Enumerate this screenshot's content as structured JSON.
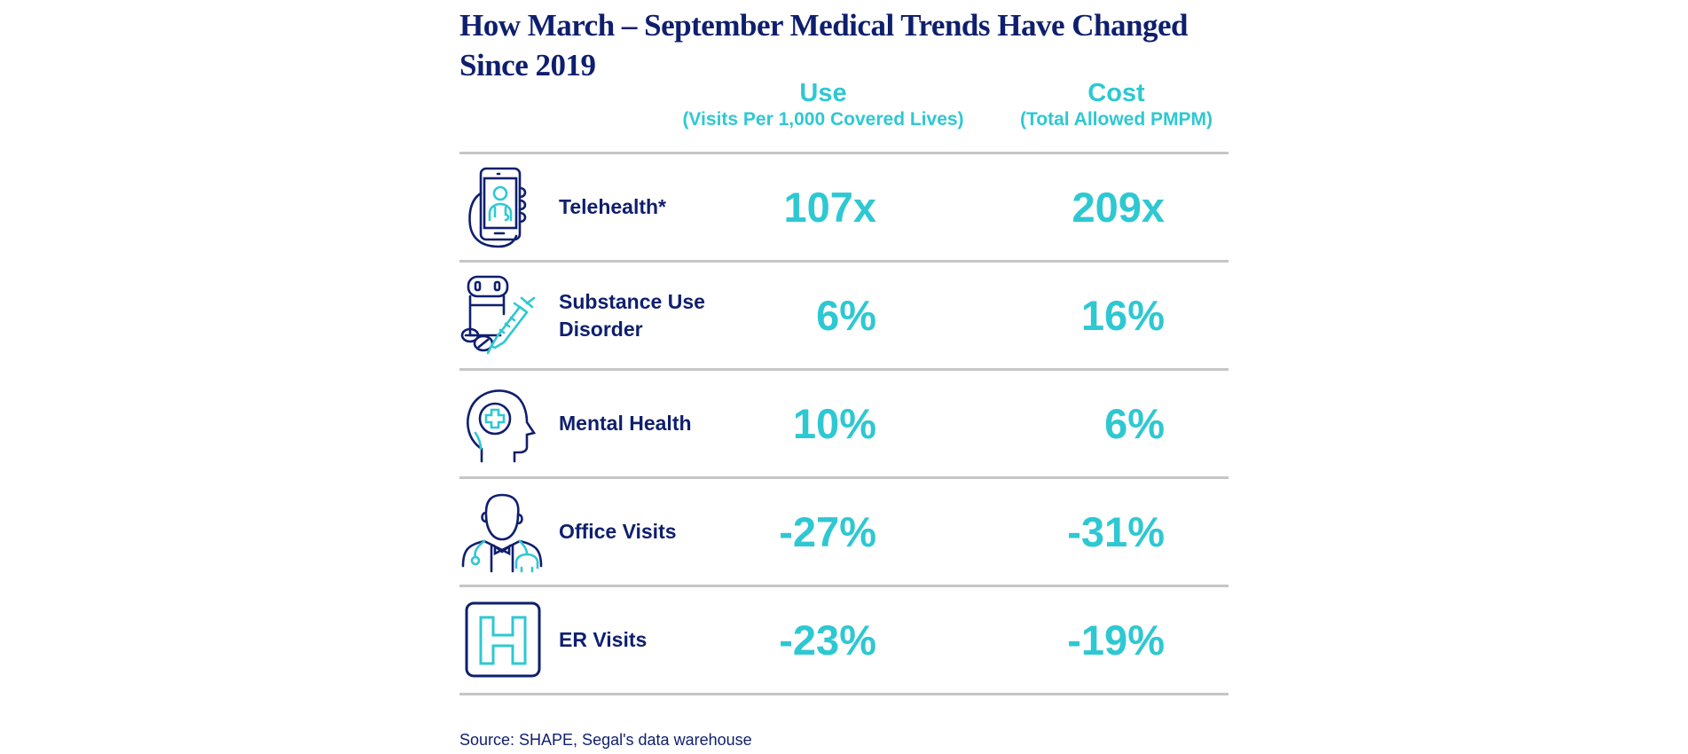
{
  "title": "How March – September Medical Trends Have Changed Since 2019",
  "columns": {
    "use": {
      "label": "Use",
      "sublabel": "(Visits Per 1,000 Covered Lives)"
    },
    "cost": {
      "label": "Cost",
      "sublabel": "(Total Allowed PMPM)"
    }
  },
  "rows": [
    {
      "icon": "phone-doctor-icon",
      "label": "Telehealth*",
      "use": "107x",
      "cost": "209x"
    },
    {
      "icon": "pills-syringe-icon",
      "label": "Substance Use Disorder",
      "use": "6%",
      "cost": "16%"
    },
    {
      "icon": "head-medical-cross-icon",
      "label": "Mental Health",
      "use": "10%",
      "cost": "6%"
    },
    {
      "icon": "doctor-stethoscope-icon",
      "label": "Office Visits",
      "use": "-27%",
      "cost": "-31%"
    },
    {
      "icon": "hospital-h-icon",
      "label": "ER Visits",
      "use": "-23%",
      "cost": "-19%"
    }
  ],
  "source": "Source: SHAPE, Segal's data warehouse",
  "colors": {
    "navy": "#0f1f6e",
    "teal": "#2ec8d2",
    "rule": "#c6c6c6"
  }
}
